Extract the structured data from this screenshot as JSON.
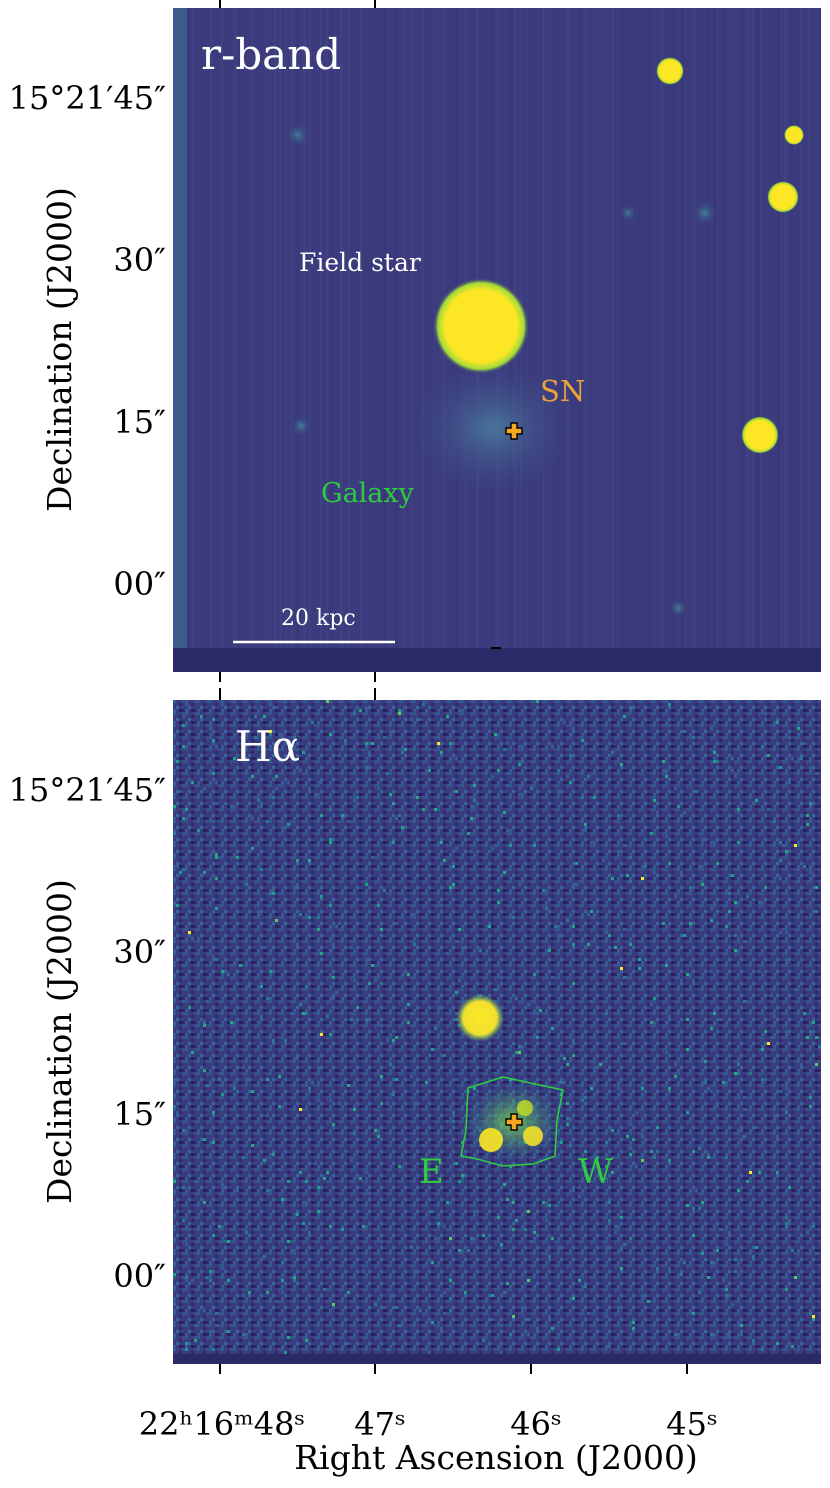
{
  "top_panel": {
    "band_label": "r-band",
    "labels": {
      "field_star": "Field star",
      "sn": "SN",
      "galaxy": "Galaxy",
      "scale_bar": "20 kpc"
    }
  },
  "bottom_panel": {
    "band_label": "Hα",
    "labels": {
      "east": "E",
      "west": "W"
    }
  },
  "axes": {
    "ylabel": "Declination (J2000)",
    "xlabel": "Right Ascension (J2000)",
    "yticks": [
      "15°21′45″",
      "30″",
      "15″",
      "00″"
    ],
    "xticks": [
      "22ʰ16ᵐ48ˢ",
      "47ˢ",
      "46ˢ",
      "45ˢ"
    ]
  },
  "colors": {
    "background": "#3b3b7d",
    "star": "#fde725",
    "sn_marker": "#f5a623",
    "galaxy_label": "#2ecc40",
    "sn_label": "#e8a33c",
    "white_label": "#ffffff"
  }
}
